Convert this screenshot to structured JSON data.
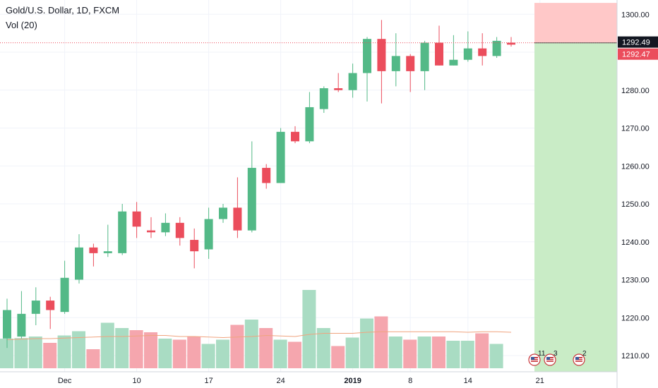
{
  "header": {
    "title": "Gold/U.S. Dollar, 1D, FXCM",
    "volume_label": "Vol (20)"
  },
  "colors": {
    "up": "#53b987",
    "down": "#eb4d5c",
    "up_volume": "#a9dcc3",
    "down_volume": "#f5a6ae",
    "volume_ma": "#f0a47f",
    "target_zone": "#c9ecc6",
    "stop_zone": "#ffc8c8",
    "grid": "#f0f3fa"
  },
  "price_tags": {
    "current": "1292.49",
    "entry": "1292.47"
  },
  "events": [
    {
      "count": "11",
      "icon": "us-flag-icon"
    },
    {
      "count": "3",
      "icon": "us-flag-icon"
    },
    {
      "count": "2",
      "icon": "us-flag-icon"
    }
  ],
  "chart_data": {
    "type": "candlestick",
    "title": "Gold/U.S. Dollar, 1D, FXCM",
    "y_axis": {
      "side": "right",
      "range": [
        1207,
        1303
      ],
      "ticks": [
        "1210.00",
        "1220.00",
        "1230.00",
        "1240.00",
        "1250.00",
        "1260.00",
        "1270.00",
        "1280.00",
        "1290.00",
        "1300.00"
      ]
    },
    "x_axis": {
      "ticks": [
        {
          "label": "Dec",
          "bar": 4
        },
        {
          "label": "10",
          "bar": 9
        },
        {
          "label": "17",
          "bar": 14
        },
        {
          "label": "24",
          "bar": 19
        },
        {
          "label": "2019",
          "bar": 24,
          "bold": true
        },
        {
          "label": "8",
          "bar": 28
        },
        {
          "label": "14",
          "bar": 32
        },
        {
          "label": "21",
          "bar": 37
        }
      ]
    },
    "grid": true,
    "bars": [
      {
        "o": 1214.5,
        "h": 1225.0,
        "l": 1212.0,
        "c": 1222.0,
        "v": 0.28
      },
      {
        "o": 1215.0,
        "h": 1227.0,
        "l": 1214.5,
        "c": 1221.0,
        "v": 0.285
      },
      {
        "o": 1221.0,
        "h": 1228.0,
        "l": 1218.0,
        "c": 1224.5,
        "v": 0.3
      },
      {
        "o": 1224.5,
        "h": 1225.5,
        "l": 1217.0,
        "c": 1222.0,
        "v": 0.24
      },
      {
        "o": 1221.5,
        "h": 1235.0,
        "l": 1221.0,
        "c": 1230.5,
        "v": 0.31
      },
      {
        "o": 1230.0,
        "h": 1242.0,
        "l": 1229.0,
        "c": 1238.5,
        "v": 0.35
      },
      {
        "o": 1238.5,
        "h": 1239.5,
        "l": 1233.5,
        "c": 1237.0,
        "v": 0.18
      },
      {
        "o": 1237.0,
        "h": 1244.5,
        "l": 1236.0,
        "c": 1237.5,
        "v": 0.43
      },
      {
        "o": 1237.0,
        "h": 1250.0,
        "l": 1236.5,
        "c": 1248.0,
        "v": 0.38
      },
      {
        "o": 1248.0,
        "h": 1250.5,
        "l": 1241.0,
        "c": 1244.0,
        "v": 0.36
      },
      {
        "o": 1243.0,
        "h": 1246.5,
        "l": 1241.0,
        "c": 1242.5,
        "v": 0.34
      },
      {
        "o": 1242.5,
        "h": 1247.5,
        "l": 1241.5,
        "c": 1245.0,
        "v": 0.28
      },
      {
        "o": 1245.0,
        "h": 1246.5,
        "l": 1239.0,
        "c": 1241.0,
        "v": 0.27
      },
      {
        "o": 1240.5,
        "h": 1243.5,
        "l": 1233.0,
        "c": 1237.5,
        "v": 0.3
      },
      {
        "o": 1238.0,
        "h": 1249.0,
        "l": 1235.5,
        "c": 1246.0,
        "v": 0.23
      },
      {
        "o": 1246.0,
        "h": 1250.0,
        "l": 1245.0,
        "c": 1249.0,
        "v": 0.27
      },
      {
        "o": 1249.0,
        "h": 1257.0,
        "l": 1241.0,
        "c": 1243.0,
        "v": 0.41
      },
      {
        "o": 1243.0,
        "h": 1266.5,
        "l": 1242.5,
        "c": 1259.5,
        "v": 0.46
      },
      {
        "o": 1259.5,
        "h": 1260.5,
        "l": 1254.0,
        "c": 1255.5,
        "v": 0.38
      },
      {
        "o": 1255.5,
        "h": 1270.0,
        "l": 1255.5,
        "c": 1269.0,
        "v": 0.27
      },
      {
        "o": 1269.0,
        "h": 1270.5,
        "l": 1266.0,
        "c": 1266.5,
        "v": 0.25
      },
      {
        "o": 1266.5,
        "h": 1279.5,
        "l": 1266.0,
        "c": 1275.5,
        "v": 0.74
      },
      {
        "o": 1275.0,
        "h": 1281.0,
        "l": 1274.0,
        "c": 1280.5,
        "v": 0.38
      },
      {
        "o": 1280.5,
        "h": 1284.5,
        "l": 1279.5,
        "c": 1280.0,
        "v": 0.21
      },
      {
        "o": 1280.0,
        "h": 1287.0,
        "l": 1278.0,
        "c": 1284.5,
        "v": 0.29
      },
      {
        "o": 1284.5,
        "h": 1294.0,
        "l": 1277.0,
        "c": 1293.5,
        "v": 0.47
      },
      {
        "o": 1293.5,
        "h": 1298.5,
        "l": 1276.5,
        "c": 1285.0,
        "v": 0.49
      },
      {
        "o": 1285.0,
        "h": 1295.0,
        "l": 1281.0,
        "c": 1289.0,
        "v": 0.3
      },
      {
        "o": 1289.0,
        "h": 1289.5,
        "l": 1279.5,
        "c": 1285.0,
        "v": 0.27
      },
      {
        "o": 1285.0,
        "h": 1293.0,
        "l": 1280.0,
        "c": 1292.5,
        "v": 0.3
      },
      {
        "o": 1292.5,
        "h": 1297.0,
        "l": 1286.5,
        "c": 1286.5,
        "v": 0.3
      },
      {
        "o": 1286.5,
        "h": 1294.5,
        "l": 1286.5,
        "c": 1288.0,
        "v": 0.26
      },
      {
        "o": 1288.0,
        "h": 1295.5,
        "l": 1287.5,
        "c": 1291.0,
        "v": 0.26
      },
      {
        "o": 1291.0,
        "h": 1295.0,
        "l": 1286.5,
        "c": 1289.0,
        "v": 0.33
      },
      {
        "o": 1289.0,
        "h": 1294.0,
        "l": 1288.5,
        "c": 1293.0,
        "v": 0.23
      },
      {
        "o": 1292.5,
        "h": 1294.0,
        "l": 1291.5,
        "c": 1292.0,
        "v": 0.0
      }
    ],
    "volume_ma": [
      0.27,
      0.275,
      0.28,
      0.28,
      0.285,
      0.29,
      0.295,
      0.3,
      0.3,
      0.305,
      0.31,
      0.31,
      0.3,
      0.3,
      0.295,
      0.29,
      0.295,
      0.3,
      0.31,
      0.305,
      0.3,
      0.32,
      0.33,
      0.33,
      0.33,
      0.34,
      0.345,
      0.345,
      0.345,
      0.345,
      0.345,
      0.345,
      0.34,
      0.345,
      0.345,
      0.34
    ],
    "position": {
      "entry": 1292.47,
      "stop": 1303,
      "target": 1207,
      "current_price": 1292.49
    }
  }
}
